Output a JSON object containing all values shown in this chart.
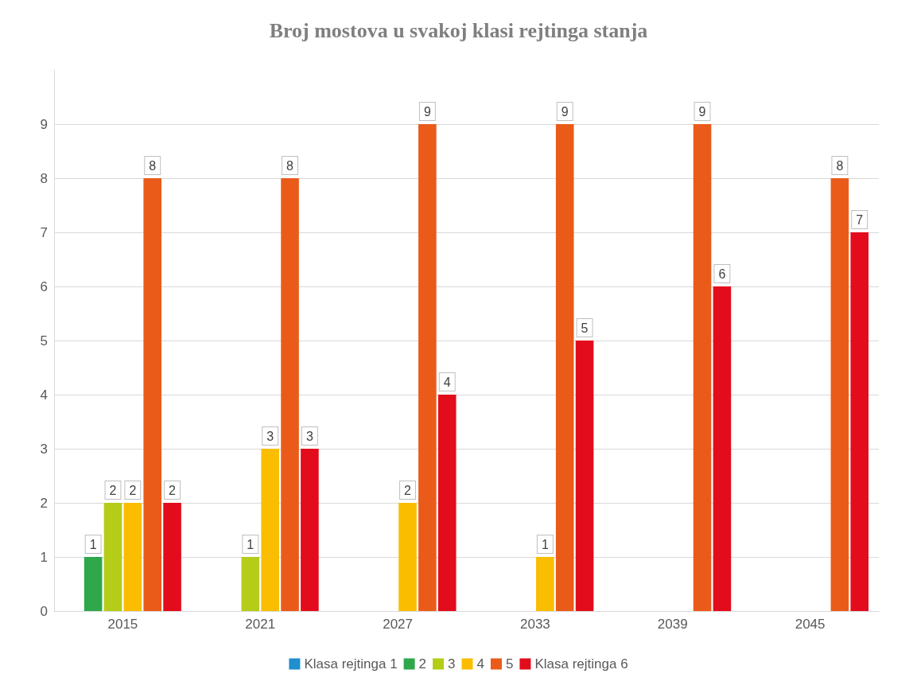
{
  "chart_data": {
    "type": "bar",
    "title": "Broj mostova u svakoj klasi rejtinga stanja",
    "categories": [
      "2015",
      "2021",
      "2027",
      "2033",
      "2039",
      "2045"
    ],
    "series": [
      {
        "name": "Klasa rejtinga 1",
        "color": "#1f8fd0",
        "values": [
          0,
          0,
          0,
          0,
          0,
          0
        ],
        "value_labels": [
          null,
          null,
          null,
          null,
          null,
          null
        ]
      },
      {
        "name": "2",
        "color": "#2ea84a",
        "values": [
          1,
          0,
          0,
          0,
          0,
          0
        ],
        "value_labels": [
          "1",
          null,
          null,
          null,
          null,
          null
        ]
      },
      {
        "name": "3",
        "color": "#b5cc18",
        "values": [
          2,
          1,
          0,
          0,
          0,
          0
        ],
        "value_labels": [
          "2",
          "1",
          null,
          null,
          null,
          null
        ]
      },
      {
        "name": "4",
        "color": "#fbbd00",
        "values": [
          2,
          3,
          2,
          1,
          0,
          0
        ],
        "value_labels": [
          "2",
          "3",
          "2",
          "1",
          null,
          null
        ]
      },
      {
        "name": "5",
        "color": "#ea5b1a",
        "values": [
          8,
          8,
          9,
          9,
          9,
          8
        ],
        "value_labels": [
          "8",
          "8",
          "9",
          "9",
          "9",
          "8"
        ]
      },
      {
        "name": "Klasa rejtinga 6",
        "color": "#e30c1c",
        "values": [
          2,
          3,
          4,
          5,
          6,
          7
        ],
        "value_labels": [
          "2",
          "3",
          "4",
          "5",
          "6",
          "7"
        ]
      }
    ],
    "ylim": [
      0,
      10
    ],
    "yticks": [
      0,
      1,
      2,
      3,
      4,
      5,
      6,
      7,
      8,
      9
    ],
    "grid": "y",
    "legend": "bottom"
  }
}
